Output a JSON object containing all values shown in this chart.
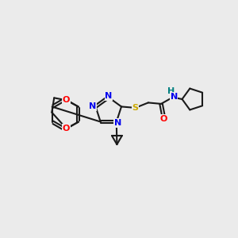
{
  "bg_color": "#ebebeb",
  "bond_color": "#1a1a1a",
  "bond_width": 1.5,
  "atom_colors": {
    "N": "#0000ee",
    "O": "#ff0000",
    "S": "#ccaa00",
    "H": "#008080",
    "C": "#1a1a1a"
  },
  "font_size": 8.0,
  "fig_size": [
    3.0,
    3.0
  ],
  "dpi": 100,
  "xlim": [
    0,
    10
  ],
  "ylim": [
    0,
    10
  ]
}
